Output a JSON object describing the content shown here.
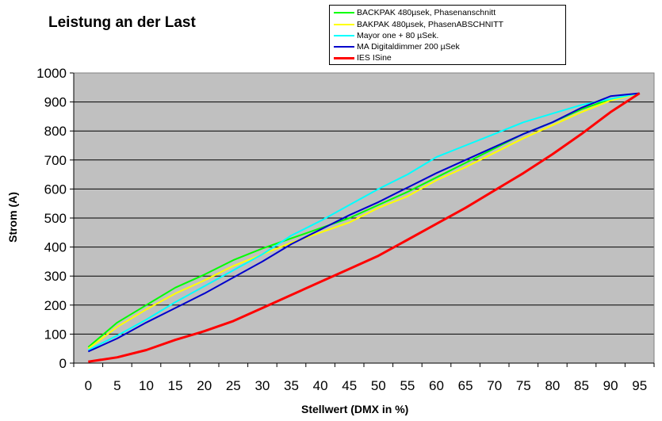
{
  "chart_data": {
    "type": "line",
    "title": "Leistung an der Last",
    "xlabel": "Stellwert (DMX in %)",
    "ylabel": "Strom (A)",
    "x": [
      0,
      5,
      10,
      15,
      20,
      25,
      30,
      35,
      40,
      45,
      50,
      55,
      60,
      65,
      70,
      75,
      80,
      85,
      90,
      95
    ],
    "xlim": [
      -2.5,
      97.5
    ],
    "ylim": [
      0,
      1000
    ],
    "yticks": [
      0,
      100,
      200,
      300,
      400,
      500,
      600,
      700,
      800,
      900,
      1000
    ],
    "xticks": [
      "0",
      "5",
      "10",
      "15",
      "20",
      "25",
      "30",
      "35",
      "40",
      "45",
      "50",
      "55",
      "60",
      "65",
      "70",
      "75",
      "80",
      "85",
      "90",
      "95"
    ],
    "grid": true,
    "legend_position": "top-right",
    "plot_background": "#c0c0c0",
    "series": [
      {
        "name": "BACKPAK 480µsek, Phasenanschnitt",
        "color": "#00ff00",
        "values": [
          55,
          140,
          200,
          260,
          305,
          355,
          395,
          430,
          465,
          500,
          545,
          590,
          640,
          690,
          740,
          790,
          830,
          875,
          910,
          930
        ]
      },
      {
        "name": "BAKPAK 480µsek, PhasenABSCHNITT",
        "color": "#ffff00",
        "values": [
          50,
          125,
          185,
          240,
          285,
          335,
          375,
          415,
          450,
          485,
          535,
          575,
          630,
          675,
          725,
          775,
          820,
          865,
          905,
          930
        ]
      },
      {
        "name": "Mayor one + 80 µSek.",
        "color": "#00ffff",
        "values": [
          45,
          95,
          150,
          210,
          265,
          320,
          375,
          440,
          490,
          545,
          600,
          650,
          710,
          750,
          790,
          830,
          860,
          890,
          910,
          930
        ]
      },
      {
        "name": "MA Digitaldimmer 200 µSek",
        "color": "#0000cc",
        "values": [
          40,
          85,
          140,
          190,
          240,
          295,
          350,
          410,
          460,
          510,
          555,
          605,
          655,
          700,
          745,
          790,
          830,
          880,
          920,
          930
        ]
      },
      {
        "name": "IES ISine",
        "color": "#ff0000",
        "values": [
          5,
          20,
          45,
          80,
          110,
          145,
          190,
          235,
          280,
          325,
          370,
          425,
          480,
          535,
          595,
          655,
          720,
          790,
          865,
          930
        ]
      }
    ]
  }
}
